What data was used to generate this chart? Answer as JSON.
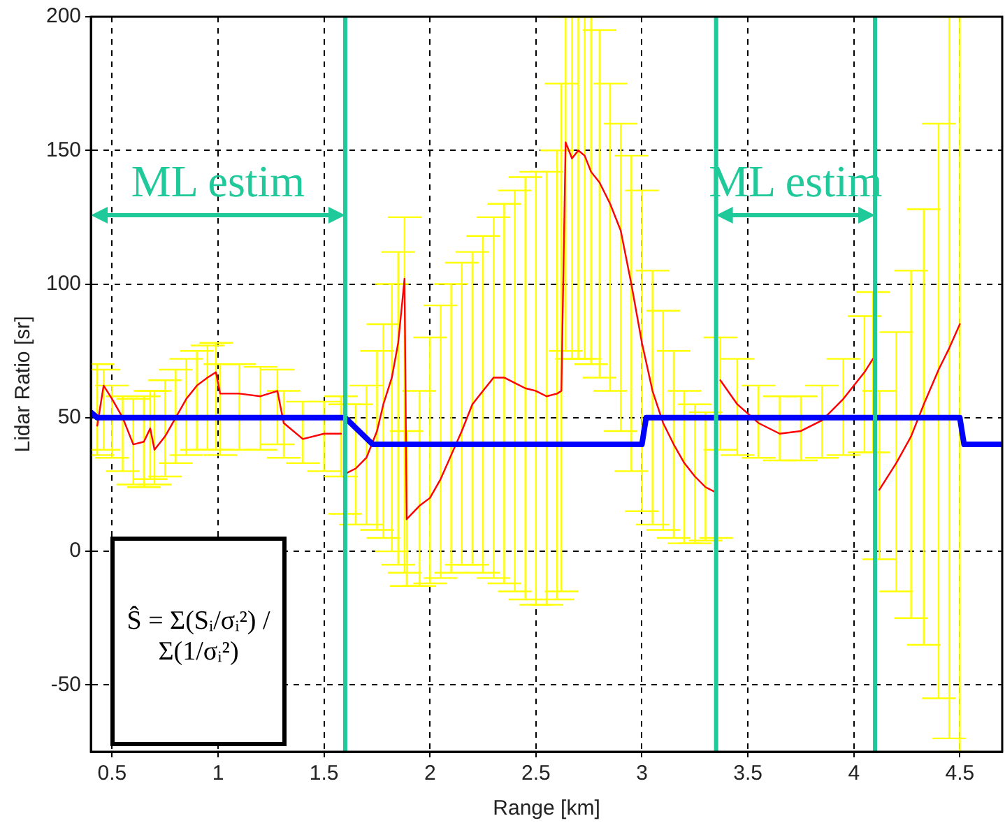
{
  "chart_data": {
    "type": "line",
    "xlabel": "Range [km]",
    "ylabel": "Lidar Ratio [sr]",
    "xlim": [
      0.4,
      4.7
    ],
    "xticks": [
      0.5,
      1,
      1.5,
      2,
      2.5,
      3,
      3.5,
      4,
      4.5
    ],
    "ylim": [
      -75,
      200
    ],
    "yticks": [
      -50,
      0,
      50,
      100,
      150,
      200
    ],
    "grid": true,
    "legend": false,
    "marker": "none",
    "line_style": "solid",
    "series": [
      {
        "type": "line",
        "color": "#ff0000",
        "x": [
          0.43,
          0.46,
          0.5,
          0.55,
          0.6,
          0.65,
          0.68,
          0.7,
          0.75,
          0.8,
          0.85,
          0.9,
          0.95,
          0.99,
          1.01,
          1.1,
          1.2,
          1.28,
          1.31,
          1.4,
          1.5,
          1.58,
          1.59,
          1.6,
          1.65,
          1.7,
          1.75,
          1.78,
          1.82,
          1.85,
          1.88,
          1.89,
          1.95,
          2.0,
          2.05,
          2.1,
          2.15,
          2.2,
          2.25,
          2.3,
          2.35,
          2.4,
          2.45,
          2.5,
          2.55,
          2.6,
          2.62,
          2.64,
          2.67,
          2.7,
          2.73,
          2.76,
          2.8,
          2.85,
          2.9,
          2.95,
          3.0,
          3.05,
          3.1,
          3.15,
          3.2,
          3.25,
          3.3,
          3.35,
          3.36,
          3.37,
          3.45,
          3.55,
          3.65,
          3.75,
          3.85,
          3.95,
          4.05,
          4.09,
          4.1,
          4.12,
          4.2,
          4.27,
          4.33,
          4.4,
          4.45,
          4.5
        ],
        "values": [
          47,
          62,
          57,
          50,
          40,
          41,
          46,
          38,
          43,
          50,
          57,
          62,
          65,
          67,
          59,
          59,
          58,
          60,
          48,
          42,
          44,
          44,
          null,
          29,
          31,
          35,
          45,
          55,
          65,
          78,
          102,
          12,
          17,
          20,
          27,
          36,
          45,
          55,
          60,
          65,
          65,
          63,
          61,
          60,
          58,
          59,
          60,
          153,
          147,
          150,
          148,
          142,
          138,
          130,
          120,
          100,
          78,
          60,
          48,
          40,
          33,
          28,
          24,
          22,
          null,
          64,
          55,
          48,
          44,
          45,
          49,
          57,
          67,
          72,
          null,
          23,
          33,
          43,
          55,
          68,
          76,
          85
        ],
        "errors": [
          [
            36,
            70
          ],
          [
            38,
            68
          ],
          [
            35,
            62
          ],
          [
            30,
            58
          ],
          [
            25,
            57
          ],
          [
            24,
            58
          ],
          [
            27,
            60
          ],
          [
            25,
            60
          ],
          [
            28,
            64
          ],
          [
            33,
            68
          ],
          [
            36,
            72
          ],
          [
            38,
            75
          ],
          [
            38,
            77
          ],
          [
            38,
            78
          ],
          [
            36,
            70
          ],
          [
            38,
            70
          ],
          [
            38,
            69
          ],
          [
            40,
            68
          ],
          [
            35,
            60
          ],
          [
            33,
            56
          ],
          [
            30,
            56
          ],
          [
            28,
            58
          ],
          null,
          [
            14,
            55
          ],
          [
            10,
            55
          ],
          [
            10,
            62
          ],
          [
            8,
            75
          ],
          [
            5,
            85
          ],
          [
            0,
            100
          ],
          [
            -5,
            112
          ],
          [
            -8,
            125
          ],
          [
            -13,
            45
          ],
          [
            -13,
            60
          ],
          [
            -12,
            80
          ],
          [
            -10,
            92
          ],
          [
            -8,
            100
          ],
          [
            -5,
            108
          ],
          [
            -5,
            112
          ],
          [
            -8,
            118
          ],
          [
            -10,
            125
          ],
          [
            -12,
            130
          ],
          [
            -15,
            135
          ],
          [
            -18,
            140
          ],
          [
            -20,
            142
          ],
          [
            -20,
            142
          ],
          [
            -18,
            150
          ],
          [
            -15,
            175
          ],
          [
            75,
            200
          ],
          [
            72,
            200
          ],
          [
            72,
            200
          ],
          [
            72,
            200
          ],
          [
            70,
            200
          ],
          [
            65,
            195
          ],
          [
            60,
            175
          ],
          [
            45,
            160
          ],
          [
            30,
            148
          ],
          [
            15,
            135
          ],
          [
            10,
            105
          ],
          [
            8,
            90
          ],
          [
            5,
            75
          ],
          [
            3,
            60
          ],
          [
            3,
            55
          ],
          [
            4,
            52
          ],
          [
            5,
            50
          ],
          null,
          [
            38,
            80
          ],
          [
            36,
            72
          ],
          [
            35,
            62
          ],
          [
            34,
            58
          ],
          [
            34,
            58
          ],
          [
            35,
            62
          ],
          [
            36,
            72
          ],
          [
            37,
            88
          ],
          [
            37,
            97
          ],
          null,
          [
            -3,
            60
          ],
          [
            -15,
            82
          ],
          [
            -25,
            105
          ],
          [
            -35,
            128
          ],
          [
            -55,
            160
          ],
          [
            -70,
            200
          ],
          [
            -75,
            200
          ]
        ]
      },
      {
        "type": "line",
        "color": "#0000ff",
        "x": [
          0.4,
          0.43,
          1.6,
          1.73,
          3.0,
          3.02,
          4.5,
          4.52,
          4.7
        ],
        "values": [
          52,
          50,
          50,
          40,
          40,
          50,
          50,
          40,
          40
        ]
      }
    ],
    "ref_lines": [
      {
        "axis": "x",
        "value": 1.6,
        "color": "#1fc99a"
      },
      {
        "axis": "x",
        "value": 3.35,
        "color": "#1fc99a"
      },
      {
        "axis": "x",
        "value": 4.1,
        "color": "#1fc99a"
      }
    ],
    "annotations": [
      "ML estim",
      "ML estim",
      "Ŝ = Σ(Sᵢ/σᵢ²) / Σ(1/σᵢ²)"
    ]
  }
}
